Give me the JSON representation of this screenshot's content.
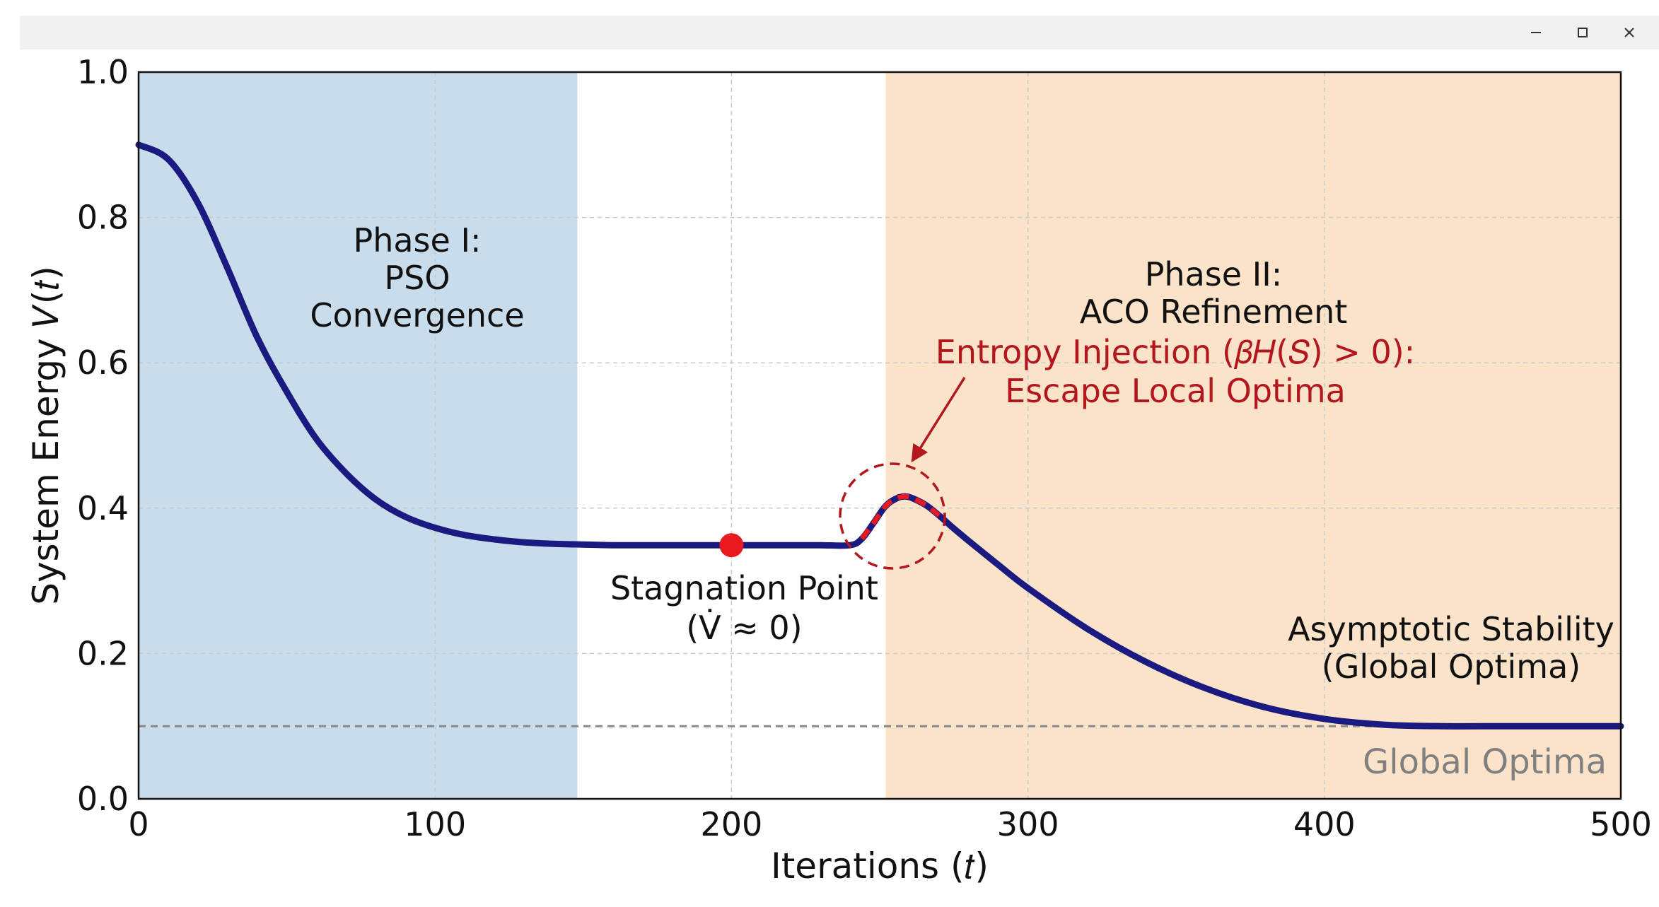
{
  "window": {
    "controls": [
      "minimize-icon",
      "maximize-icon",
      "close-icon"
    ]
  },
  "colors": {
    "curve": "#1a1a80",
    "phase1_band": "#c8dcec",
    "phase2_band": "#fae3c8",
    "stagnation_point": "#e8191f",
    "annotation": "#b3161c",
    "global_optima_line": "#888888",
    "global_optima_label": "#808080",
    "grid": "#c8c8c8"
  },
  "chart_data": {
    "type": "line",
    "xlabel": "Iterations (𝑡)",
    "ylabel": "System Energy 𝑉(𝑡)",
    "xlim": [
      0,
      500
    ],
    "ylim": [
      0.0,
      1.0
    ],
    "x_ticks": [
      0,
      100,
      200,
      300,
      400,
      500
    ],
    "y_ticks": [
      0.0,
      0.2,
      0.4,
      0.6,
      0.8,
      1.0
    ],
    "x_tick_labels": [
      "0",
      "100",
      "200",
      "300",
      "400",
      "500"
    ],
    "y_tick_labels": [
      "0.0",
      "0.2",
      "0.4",
      "0.6",
      "0.8",
      "1.0"
    ],
    "grid": true,
    "series": [
      {
        "x": [
          0,
          10,
          20,
          30,
          40,
          50,
          60,
          70,
          80,
          90,
          100,
          110,
          120,
          130,
          140,
          150,
          160,
          170,
          180,
          190,
          200,
          210,
          220,
          230,
          240,
          244,
          248,
          252,
          256,
          259,
          262,
          266,
          270,
          275,
          280,
          290,
          300,
          320,
          340,
          360,
          380,
          400,
          420,
          440,
          460,
          480,
          500
        ],
        "y": [
          0.9,
          0.88,
          0.82,
          0.73,
          0.635,
          0.56,
          0.495,
          0.448,
          0.412,
          0.388,
          0.373,
          0.363,
          0.357,
          0.353,
          0.351,
          0.35,
          0.349,
          0.349,
          0.349,
          0.349,
          0.349,
          0.349,
          0.349,
          0.349,
          0.349,
          0.358,
          0.38,
          0.403,
          0.414,
          0.416,
          0.412,
          0.403,
          0.39,
          0.372,
          0.355,
          0.322,
          0.29,
          0.234,
          0.188,
          0.152,
          0.126,
          0.11,
          0.102,
          0.1,
          0.1,
          0.1,
          0.1
        ]
      }
    ],
    "reference_line": {
      "y": 0.1,
      "label": "Global Optima"
    },
    "regions": [
      {
        "x0": 0,
        "x1": 148,
        "lines": [
          "Phase I:",
          "PSO",
          "Convergence"
        ]
      },
      {
        "x0": 252,
        "x1": 500,
        "lines": [
          "Phase II:",
          "ACO Refinement"
        ]
      }
    ],
    "highlight_segment": {
      "x0": 244,
      "x1": 274
    },
    "stagnation_point": {
      "x": 200,
      "y": 0.349,
      "lines": [
        "Stagnation Point",
        "(V̇ ≈ 0)"
      ]
    },
    "entropy_annotation": {
      "x": 258,
      "y": 0.39,
      "lines": [
        "Entropy Injection (𝛽𝐻(𝑆) > 0):",
        "Escape Local Optima"
      ]
    },
    "asymptotic_annotation": {
      "lines": [
        "Asymptotic Stability",
        "(Global Optima)"
      ]
    }
  }
}
